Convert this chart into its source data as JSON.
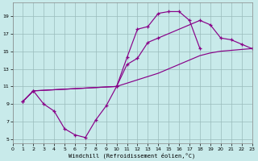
{
  "xlabel": "Windchill (Refroidissement éolien,°C)",
  "line_color": "#880088",
  "bg_color": "#c8eaea",
  "grid_color": "#99bbbb",
  "xlim": [
    0,
    23
  ],
  "ylim": [
    4.5,
    20.5
  ],
  "xticks": [
    0,
    1,
    2,
    3,
    4,
    5,
    6,
    7,
    8,
    9,
    10,
    11,
    12,
    13,
    14,
    15,
    16,
    17,
    18,
    19,
    20,
    21,
    22,
    23
  ],
  "yticks": [
    5,
    7,
    9,
    11,
    13,
    15,
    17,
    19
  ],
  "line1_x": [
    1,
    2,
    3,
    4,
    5,
    6,
    7,
    8,
    9,
    10,
    11,
    12,
    13,
    14,
    15,
    16,
    17,
    18
  ],
  "line1_y": [
    9.3,
    10.5,
    9.0,
    8.2,
    6.2,
    5.5,
    5.2,
    7.2,
    8.8,
    11.0,
    14.3,
    17.5,
    17.8,
    19.3,
    19.5,
    19.5,
    18.5,
    15.3
  ],
  "line2_x": [
    1,
    2,
    10,
    11,
    12,
    13,
    14,
    18,
    19,
    20,
    21,
    22,
    23
  ],
  "line2_y": [
    9.3,
    10.5,
    11.0,
    13.5,
    14.2,
    16.0,
    16.5,
    18.5,
    18.0,
    16.5,
    16.3,
    15.8,
    15.3
  ],
  "line3_x": [
    1,
    2,
    10,
    14,
    18,
    19,
    20,
    21,
    22,
    23
  ],
  "line3_y": [
    9.3,
    10.5,
    11.0,
    12.5,
    14.5,
    14.8,
    15.0,
    15.1,
    15.2,
    15.3
  ]
}
